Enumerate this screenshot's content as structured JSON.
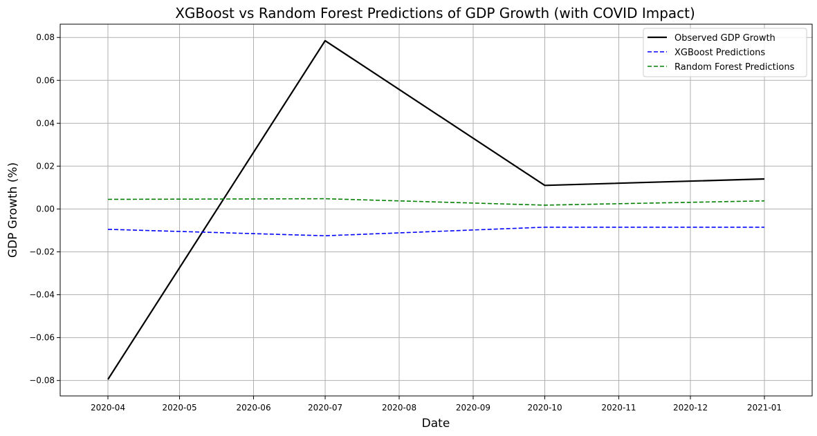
{
  "chart_data": {
    "type": "line",
    "title": "XGBoost vs Random Forest Predictions of GDP Growth (with COVID Impact)",
    "xlabel": "Date",
    "ylabel": "GDP Growth (%)",
    "x_ticks": [
      "2020-04",
      "2020-05",
      "2020-06",
      "2020-07",
      "2020-08",
      "2020-09",
      "2020-10",
      "2020-11",
      "2020-12",
      "2021-01"
    ],
    "y_ticks": [
      "−0.08",
      "−0.06",
      "−0.04",
      "−0.02",
      "0.00",
      "0.02",
      "0.04",
      "0.06",
      "0.08"
    ],
    "y_tick_values": [
      -0.08,
      -0.06,
      -0.04,
      -0.02,
      0.0,
      0.02,
      0.04,
      0.06,
      0.08
    ],
    "ylim": [
      -0.0872,
      0.0862
    ],
    "xlim": [
      "2020-03-12",
      "2021-01-21"
    ],
    "grid": true,
    "legend_position": "top-right",
    "series": [
      {
        "name": "Observed GDP Growth",
        "color": "#000000",
        "style": "solid",
        "x": [
          "2020-04-01",
          "2020-07-01",
          "2020-10-01",
          "2021-01-01"
        ],
        "values": [
          -0.0795,
          0.0785,
          0.011,
          0.014
        ]
      },
      {
        "name": "XGBoost Predictions",
        "color": "#0000ff",
        "style": "dashed",
        "x": [
          "2020-04-01",
          "2020-07-01",
          "2020-10-01",
          "2021-01-01"
        ],
        "values": [
          -0.0095,
          -0.0125,
          -0.0085,
          -0.0085
        ]
      },
      {
        "name": "Random Forest Predictions",
        "color": "#008000",
        "style": "dashed",
        "x": [
          "2020-04-01",
          "2020-07-01",
          "2020-10-01",
          "2021-01-01"
        ],
        "values": [
          0.0045,
          0.0048,
          0.0018,
          0.0038
        ]
      }
    ]
  }
}
